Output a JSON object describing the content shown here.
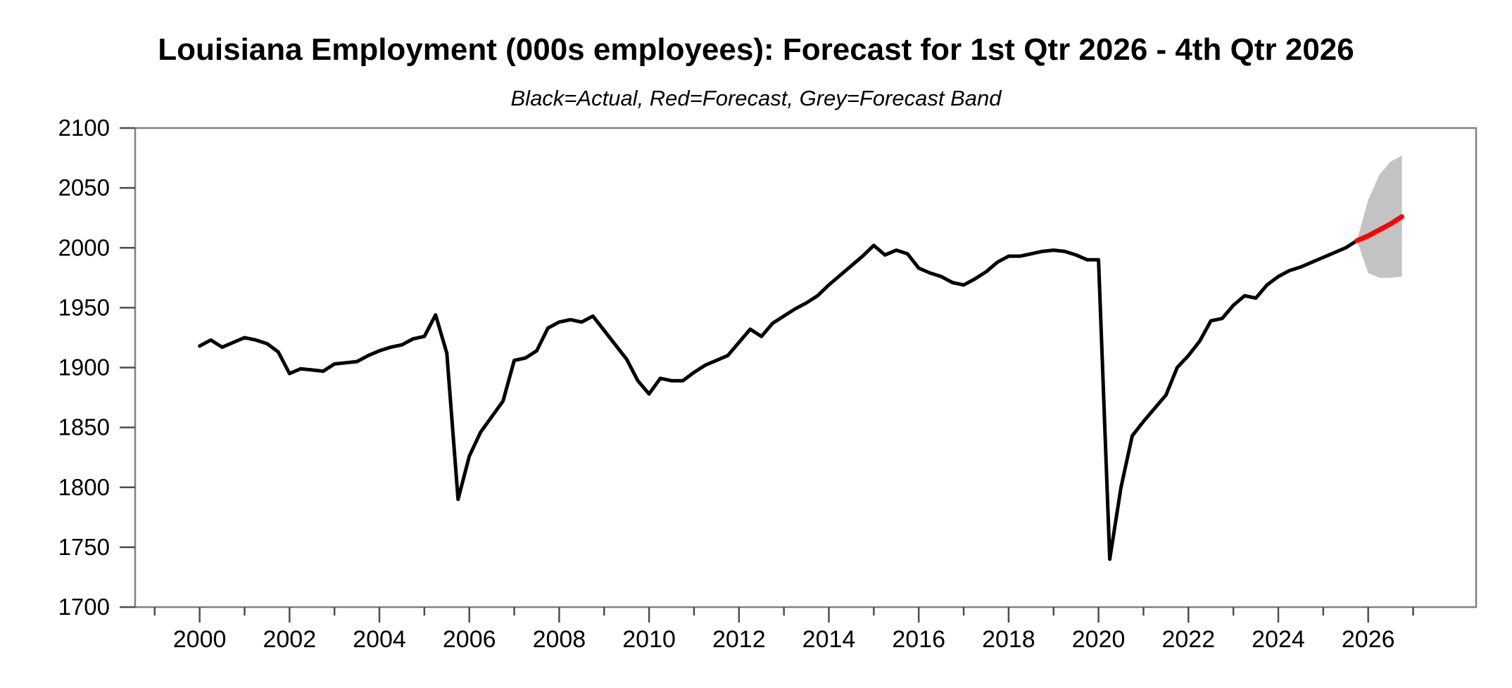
{
  "title": "Louisiana Employment (000s employees): Forecast for 1st Qtr 2026 - 4th Qtr 2026",
  "subtitle": "Black=Actual, Red=Forecast, Grey=Forecast Band",
  "chart_data": {
    "type": "line",
    "title": "Louisiana Employment (000s employees): Forecast for 1st Qtr 2026 - 4th Qtr 2026",
    "subtitle": "Black=Actual, Red=Forecast, Grey=Forecast Band",
    "xlabel": "",
    "ylabel": "",
    "ylim": [
      1700,
      2100
    ],
    "yticks": [
      1700,
      1750,
      1800,
      1850,
      1900,
      1950,
      2000,
      2050,
      2100
    ],
    "xticks_labeled": [
      2000,
      2002,
      2004,
      2006,
      2008,
      2010,
      2012,
      2014,
      2016,
      2018,
      2020,
      2022,
      2024,
      2026
    ],
    "xticks_minor": [
      1999,
      2001,
      2003,
      2005,
      2007,
      2009,
      2011,
      2013,
      2015,
      2017,
      2019,
      2021,
      2023,
      2025,
      2027
    ],
    "grid": "off",
    "legend": "subtitle-text",
    "axis_color": "#808080",
    "tick_color": "#4d4d4d",
    "tick_label_color": "#000000",
    "series": [
      {
        "name": "Actual",
        "color": "#000000",
        "width": 5,
        "start": 2000.0,
        "step": 0.25,
        "values": [
          1918,
          1923,
          1917,
          1921,
          1925,
          1923,
          1920,
          1913,
          1895,
          1899,
          1898,
          1897,
          1903,
          1904,
          1905,
          1910,
          1914,
          1917,
          1919,
          1924,
          1926,
          1944,
          1912,
          1790,
          1826,
          1846,
          1859,
          1872,
          1906,
          1908,
          1914,
          1933,
          1938,
          1940,
          1938,
          1943,
          1931,
          1919,
          1907,
          1889,
          1878,
          1891,
          1889,
          1889,
          1896,
          1902,
          1906,
          1910,
          1921,
          1932,
          1926,
          1937,
          1943,
          1949,
          1954,
          1960,
          1969,
          1977,
          1985,
          1993,
          2002,
          1994,
          1998,
          1995,
          1983,
          1979,
          1976,
          1971,
          1969,
          1974,
          1980,
          1988,
          1993,
          1993,
          1995,
          1997,
          1998,
          1997,
          1994,
          1990,
          1990,
          1740,
          1800,
          1843,
          1855,
          1866,
          1877,
          1900,
          1910,
          1922,
          1939,
          1941,
          1952,
          1960,
          1958,
          1969,
          1976,
          1981,
          1984,
          1988,
          1992,
          1996,
          2000,
          2006
        ]
      },
      {
        "name": "Forecast",
        "color": "#ff0000",
        "width": 7,
        "start": 2025.75,
        "step": 0.25,
        "values": [
          2006,
          2010,
          2015,
          2020,
          2026
        ]
      }
    ],
    "band": {
      "name": "Forecast Band",
      "color": "#c3c3c3",
      "start": 2025.75,
      "step": 0.25,
      "lower": [
        2006,
        1979,
        1975,
        1975,
        1976
      ],
      "upper": [
        2006,
        2040,
        2061,
        2072,
        2077
      ]
    }
  }
}
